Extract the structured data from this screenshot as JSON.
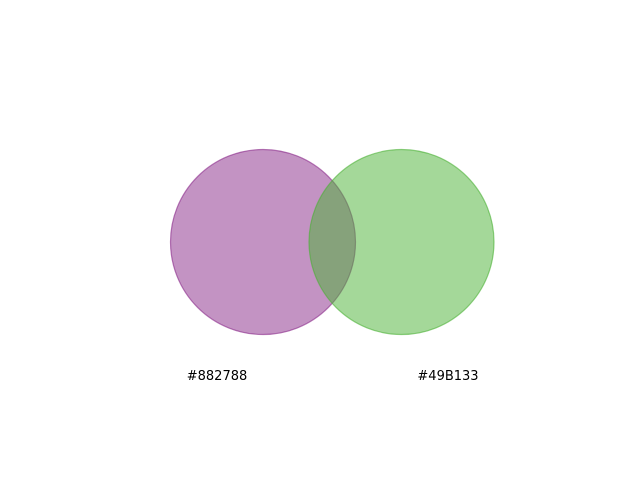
{
  "venn": {
    "sets": [
      {
        "label": "#882788",
        "fill_color": "#882788",
        "stroke_color": "#882788"
      },
      {
        "label": "#49B133",
        "fill_color": "#49B133",
        "stroke_color": "#49B133"
      }
    ]
  }
}
